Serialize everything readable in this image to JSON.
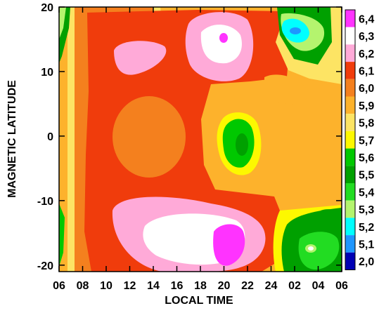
{
  "chart_data": {
    "type": "heatmap",
    "title": "",
    "xlabel": "LOCAL TIME",
    "ylabel": "MAGNETIC LATITUDE",
    "x_tick_labels": [
      "06",
      "08",
      "10",
      "12",
      "14",
      "16",
      "18",
      "20",
      "22",
      "24",
      "02",
      "04",
      "06"
    ],
    "y_tick_labels": [
      "20",
      "10",
      "0",
      "-10",
      "-20"
    ],
    "xlim": [
      6,
      30
    ],
    "ylim": [
      -21,
      20
    ],
    "colorbar": {
      "labels": [
        "6,4",
        "6,3",
        "6,2",
        "6,1",
        "6,0",
        "5,9",
        "5,8",
        "5,7",
        "5,6",
        "5,5",
        "5,4",
        "5,3",
        "5,2",
        "5,1",
        "2,0"
      ],
      "colors": [
        "#ff33ff",
        "#ffffff",
        "#ffaad8",
        "#f03c0c",
        "#f4801e",
        "#fdb22c",
        "#fde464",
        "#fdf800",
        "#00c800",
        "#00a000",
        "#22dc22",
        "#b4f46e",
        "#00ffff",
        "#1e96ff",
        "#0000b4"
      ]
    },
    "grid": false,
    "legend": "right"
  }
}
